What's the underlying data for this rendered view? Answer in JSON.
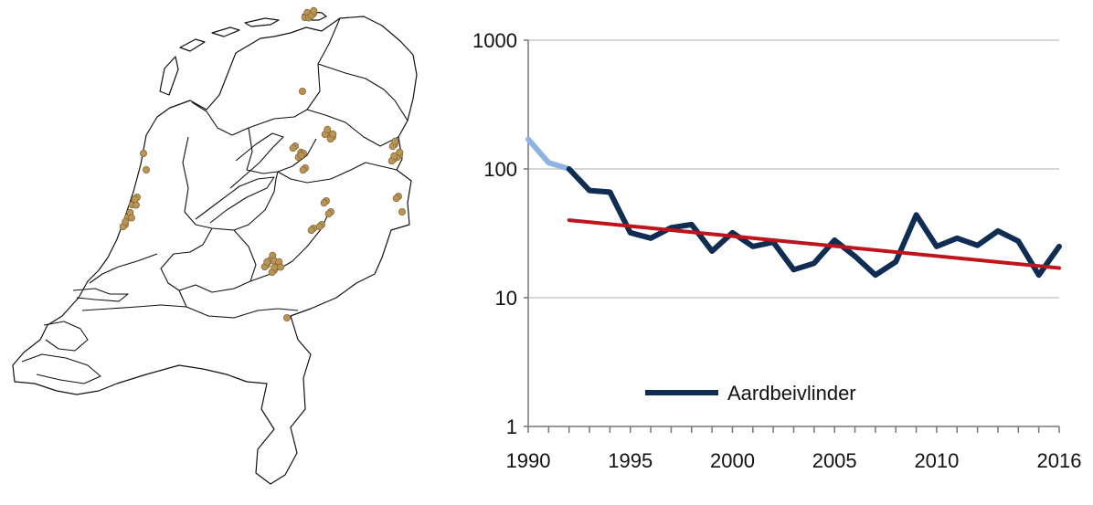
{
  "map": {
    "name": "Netherlands distribution map",
    "outline_color": "#111111",
    "dot_color": "#b99457",
    "dot_stroke": "#8a6a35"
  },
  "chart_data": {
    "type": "line",
    "scale": "log",
    "ylim": [
      1,
      1000
    ],
    "xlim": [
      1990,
      2016
    ],
    "y_ticks": [
      {
        "value": 1,
        "label": "1"
      },
      {
        "value": 10,
        "label": "10"
      },
      {
        "value": 100,
        "label": "100"
      },
      {
        "value": 1000,
        "label": "1000"
      }
    ],
    "x_ticks": [
      {
        "value": 1990,
        "label": "1990"
      },
      {
        "value": 1995,
        "label": "1995"
      },
      {
        "value": 2000,
        "label": "2000"
      },
      {
        "value": 2005,
        "label": "2005"
      },
      {
        "value": 2010,
        "label": "2010"
      },
      {
        "value": 2016,
        "label": "2016"
      }
    ],
    "grid": true,
    "series": [
      {
        "name": "Aardbeivlinder",
        "color": "#0f2d52",
        "early_color": "#8fb4e3",
        "x": [
          1990,
          1991,
          1992,
          1993,
          1994,
          1995,
          1996,
          1997,
          1998,
          1999,
          2000,
          2001,
          2002,
          2003,
          2004,
          2005,
          2006,
          2007,
          2008,
          2009,
          2010,
          2011,
          2012,
          2013,
          2014,
          2015,
          2016
        ],
        "values": [
          170,
          112,
          100,
          68,
          66,
          32,
          29,
          35,
          37,
          23,
          32,
          25,
          27,
          16.5,
          18.5,
          28,
          21,
          15,
          19,
          44,
          25,
          29,
          25.5,
          33,
          27.5,
          15,
          25
        ],
        "early_until": 1992
      },
      {
        "name": "trend",
        "color": "#c0141c",
        "x": [
          1992,
          2016
        ],
        "values": [
          40,
          17
        ]
      }
    ],
    "legend": {
      "label": "Aardbeivlinder",
      "position": "bottom-center"
    }
  }
}
